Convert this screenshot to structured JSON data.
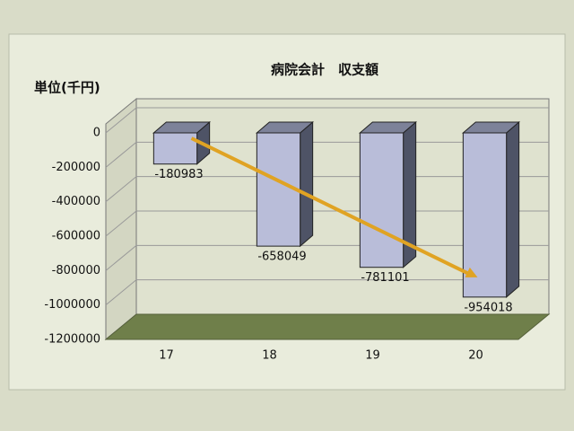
{
  "chart_data": {
    "type": "bar",
    "title": "病院会計　収支額",
    "y_label": "単位(千円)",
    "categories": [
      "17",
      "18",
      "19",
      "20"
    ],
    "values": [
      -180983,
      -658049,
      -781101,
      -954018
    ],
    "color": "#b9bdd9",
    "ylim": [
      -1200000,
      0
    ],
    "yticks": [
      0,
      -200000,
      -400000,
      -600000,
      -800000,
      -1000000,
      -1200000
    ],
    "grid": true
  }
}
